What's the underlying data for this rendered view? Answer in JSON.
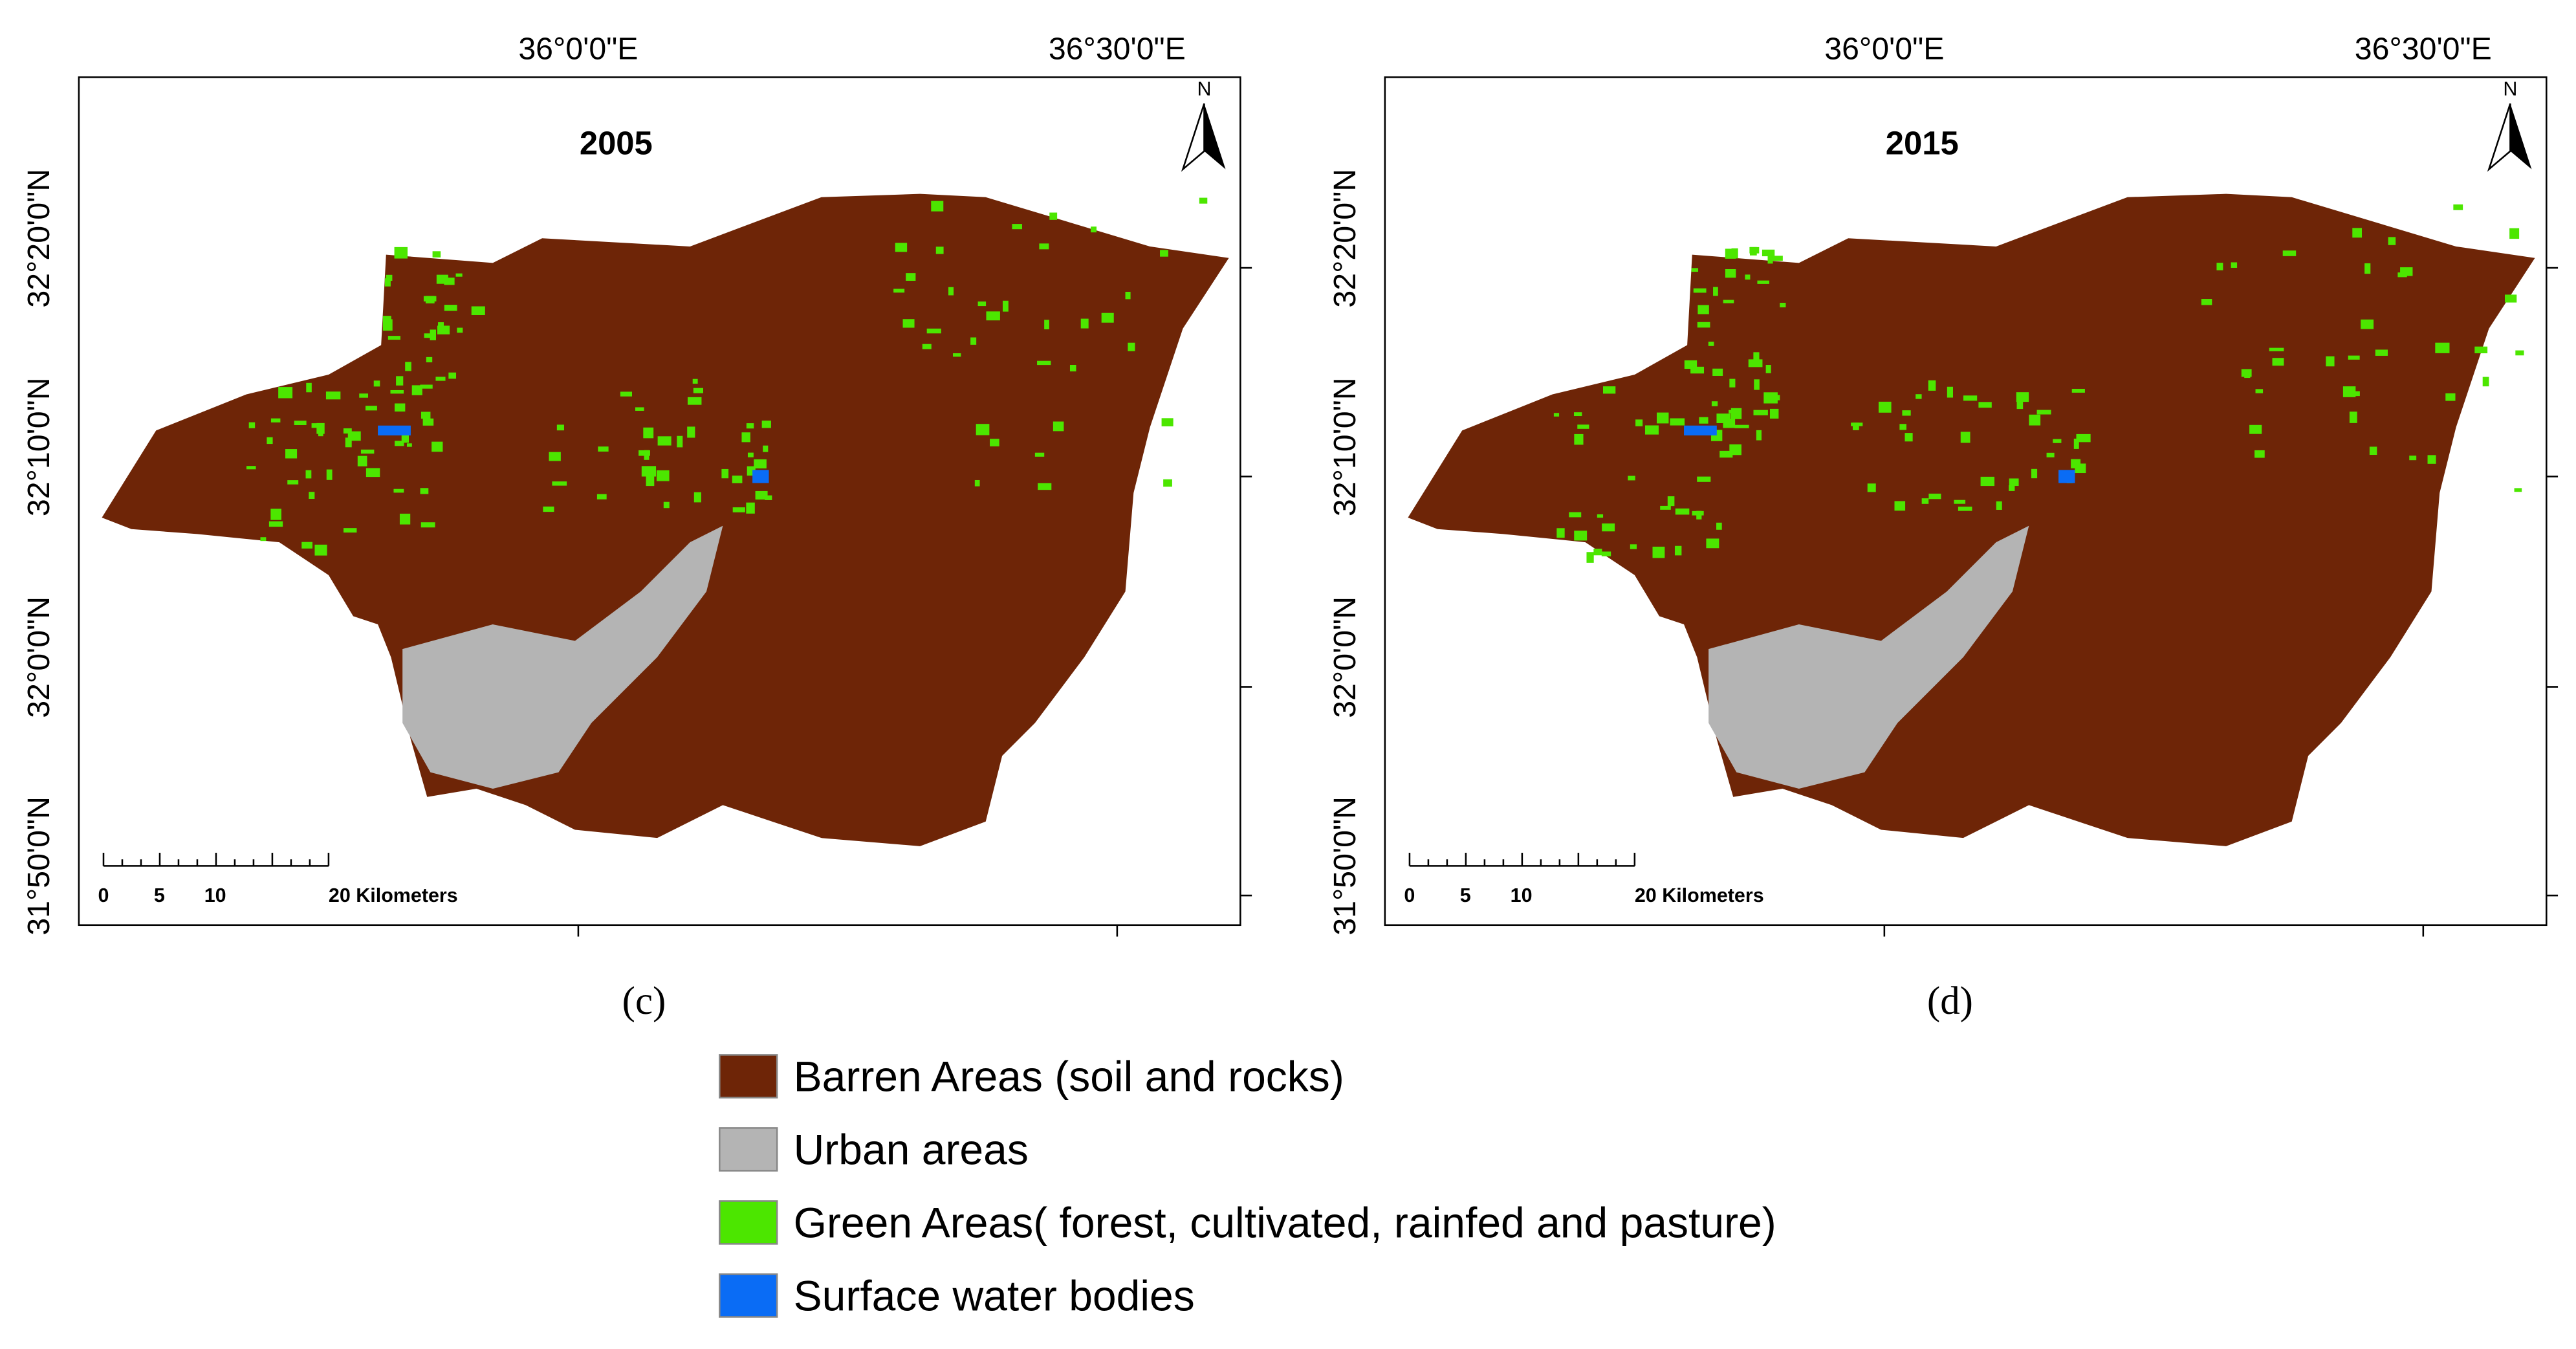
{
  "panels": [
    {
      "year": "2005",
      "caption": "(c)",
      "north": "N",
      "lon_labels": [
        "36°0'0\"E",
        "36°30'0\"E"
      ],
      "lat_labels": [
        "32°20'0\"N",
        "32°10'0\"N",
        "32°0'0\"N",
        "31°50'0\"N"
      ],
      "scale_labels": [
        "0",
        "5",
        "10",
        "20 Kilometers"
      ]
    },
    {
      "year": "2015",
      "caption": "(d)",
      "north": "N",
      "lon_labels": [
        "36°0'0\"E",
        "36°30'0\"E"
      ],
      "lat_labels": [
        "32°20'0\"N",
        "32°10'0\"N",
        "32°0'0\"N",
        "31°50'0\"N"
      ],
      "scale_labels": [
        "0",
        "5",
        "10",
        "20 Kilometers"
      ]
    }
  ],
  "legend": [
    {
      "label": "Barren Areas (soil and rocks)",
      "color": "#6e2507"
    },
    {
      "label": "Urban areas",
      "color": "#b4b4b4"
    },
    {
      "label": "Green Areas( forest, cultivated, rainfed and pasture)",
      "color": "#4ce600"
    },
    {
      "label": "Surface water bodies",
      "color": "#0a6cf5"
    }
  ]
}
